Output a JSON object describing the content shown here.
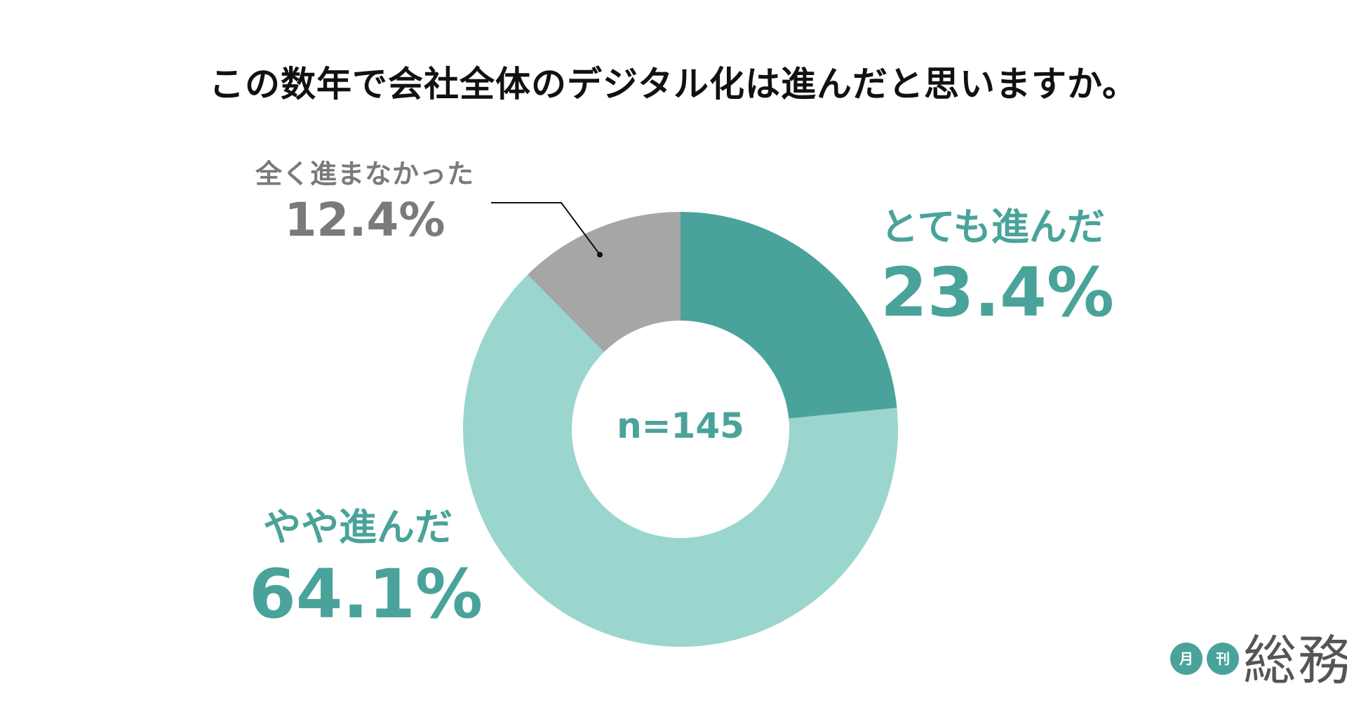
{
  "chart_data": {
    "type": "pie",
    "variant": "donut",
    "title": "この数年で会社全体のデジタル化は進んだと思いますか。",
    "center_label": "n=145",
    "slices": [
      {
        "label": "とても進んだ",
        "value": 23.4,
        "value_label": "23.4%",
        "color": "#4aa39a"
      },
      {
        "label": "やや進んだ",
        "value": 64.1,
        "value_label": "64.1%",
        "color": "#9ad6ce"
      },
      {
        "label": "全く進まなかった",
        "value": 12.4,
        "value_label": "12.4%",
        "color": "#a6a6a6"
      }
    ],
    "start_angle": "12 o'clock",
    "direction": "clockwise",
    "label_colors": {
      "dark_teal": "#4aa39a",
      "gray": "#7a7a7a",
      "line": "#111111"
    }
  },
  "logo": {
    "badge_1": "月",
    "badge_2": "刊",
    "word": "総務"
  }
}
